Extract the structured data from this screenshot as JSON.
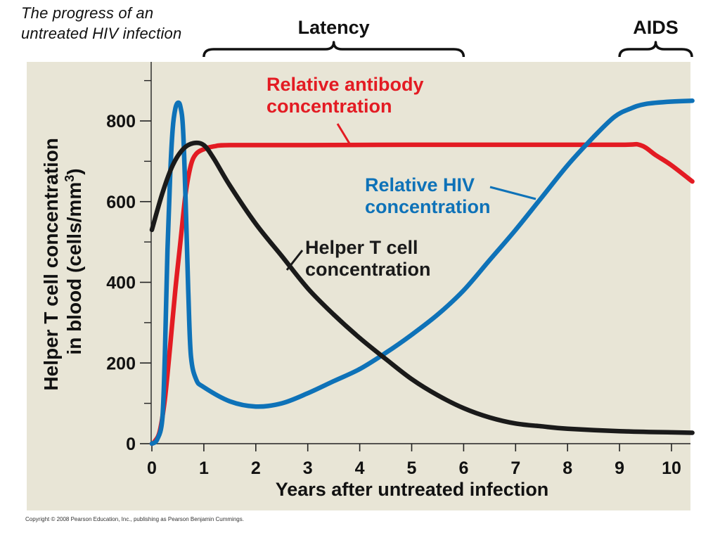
{
  "caption": [
    "The progress of an",
    "untreated HIV infection"
  ],
  "copyright": "Copyright © 2008 Pearson Education, Inc., publishing as Pearson Benjamin Cummings.",
  "colors": {
    "panel": "#e8e5d6",
    "antibody": "#e31b23",
    "hiv": "#0e72b8",
    "tcell": "#1a1a1a"
  },
  "chart_data": {
    "type": "line",
    "title": "The progress of an untreated HIV infection",
    "xlabel": "Years after untreated infection",
    "ylabel": [
      "Helper T cell concentration",
      "in blood (cells/mm",
      "3",
      ")"
    ],
    "xlim": [
      0,
      10.4
    ],
    "ylim": [
      0,
      920
    ],
    "x_ticks": [
      0,
      1,
      2,
      3,
      4,
      5,
      6,
      7,
      8,
      9,
      10
    ],
    "x_tick_labels": [
      "0",
      "1",
      "2",
      "3",
      "4",
      "5",
      "6",
      "7",
      "8",
      "9",
      "10"
    ],
    "y_major_ticks": [
      0,
      200,
      400,
      600,
      800
    ],
    "y_tick_labels": [
      "0",
      "200",
      "400",
      "600",
      "800"
    ],
    "y_minor_step": 100,
    "periods": [
      {
        "label": "Latency",
        "start": 1,
        "end": 6
      },
      {
        "label": "AIDS",
        "start": 9,
        "end": 10.4
      }
    ],
    "series": [
      {
        "name": "Relative antibody concentration",
        "label_lines": [
          "Relative antibody",
          "concentration"
        ],
        "color_key": "antibody",
        "points": [
          [
            0,
            0
          ],
          [
            0.05,
            5
          ],
          [
            0.15,
            30
          ],
          [
            0.25,
            110
          ],
          [
            0.35,
            240
          ],
          [
            0.45,
            380
          ],
          [
            0.55,
            500
          ],
          [
            0.65,
            620
          ],
          [
            0.75,
            690
          ],
          [
            0.85,
            718
          ],
          [
            1.0,
            730
          ],
          [
            1.2,
            737
          ],
          [
            1.5,
            740
          ],
          [
            3,
            740
          ],
          [
            5,
            741
          ],
          [
            7,
            741
          ],
          [
            9,
            741
          ],
          [
            9.4,
            740
          ],
          [
            9.7,
            715
          ],
          [
            10.0,
            690
          ],
          [
            10.4,
            650
          ]
        ]
      },
      {
        "name": "Relative HIV concentration",
        "label_lines": [
          "Relative HIV",
          "concentration"
        ],
        "color_key": "hiv",
        "points": [
          [
            0,
            0
          ],
          [
            0.1,
            10
          ],
          [
            0.2,
            60
          ],
          [
            0.25,
            220
          ],
          [
            0.3,
            480
          ],
          [
            0.35,
            660
          ],
          [
            0.4,
            780
          ],
          [
            0.45,
            830
          ],
          [
            0.5,
            845
          ],
          [
            0.55,
            835
          ],
          [
            0.6,
            780
          ],
          [
            0.65,
            600
          ],
          [
            0.7,
            380
          ],
          [
            0.75,
            220
          ],
          [
            0.85,
            160
          ],
          [
            1.0,
            140
          ],
          [
            1.5,
            105
          ],
          [
            2.0,
            92
          ],
          [
            2.5,
            100
          ],
          [
            3.0,
            125
          ],
          [
            3.5,
            155
          ],
          [
            4.0,
            185
          ],
          [
            4.5,
            225
          ],
          [
            5.0,
            270
          ],
          [
            5.5,
            320
          ],
          [
            6.0,
            380
          ],
          [
            6.5,
            455
          ],
          [
            7.0,
            530
          ],
          [
            7.5,
            610
          ],
          [
            8.0,
            690
          ],
          [
            8.5,
            760
          ],
          [
            8.9,
            810
          ],
          [
            9.2,
            830
          ],
          [
            9.5,
            842
          ],
          [
            10.0,
            848
          ],
          [
            10.4,
            850
          ]
        ]
      },
      {
        "name": "Helper T cell concentration",
        "label_lines": [
          "Helper T cell",
          "concentration"
        ],
        "color_key": "tcell",
        "points": [
          [
            0,
            530
          ],
          [
            0.2,
            620
          ],
          [
            0.4,
            690
          ],
          [
            0.6,
            730
          ],
          [
            0.8,
            745
          ],
          [
            1.0,
            740
          ],
          [
            1.2,
            705
          ],
          [
            1.5,
            640
          ],
          [
            2.0,
            545
          ],
          [
            2.5,
            465
          ],
          [
            3.0,
            385
          ],
          [
            3.5,
            320
          ],
          [
            4.0,
            262
          ],
          [
            4.5,
            210
          ],
          [
            5.0,
            160
          ],
          [
            5.5,
            120
          ],
          [
            6.0,
            88
          ],
          [
            6.5,
            65
          ],
          [
            7.0,
            50
          ],
          [
            7.5,
            43
          ],
          [
            8.0,
            37
          ],
          [
            9.0,
            31
          ],
          [
            10.0,
            28
          ],
          [
            10.4,
            27
          ]
        ]
      }
    ]
  }
}
